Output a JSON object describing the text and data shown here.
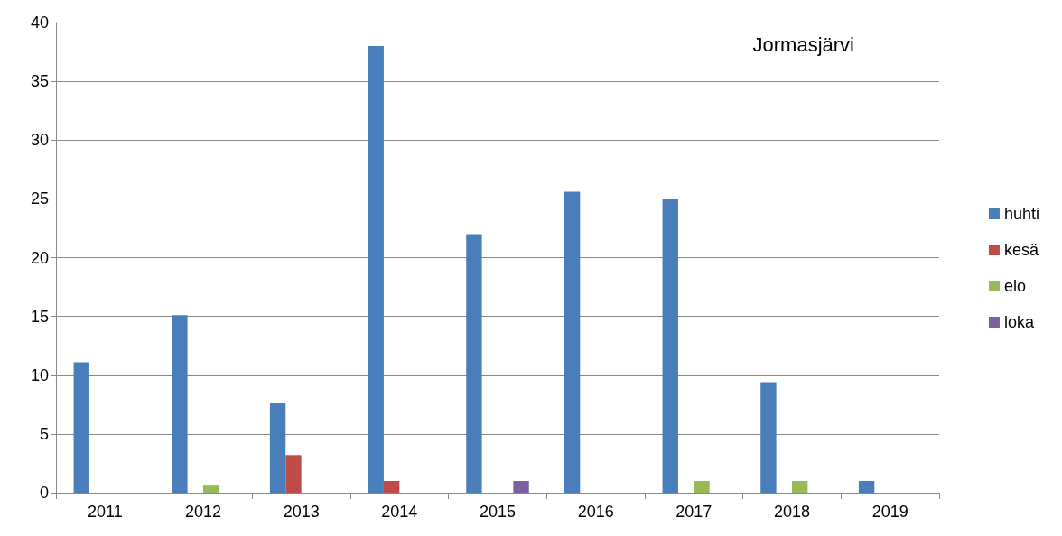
{
  "chart_data": {
    "type": "bar",
    "annotations": [
      {
        "text": "Jormasjärvi"
      }
    ],
    "categories": [
      "2011",
      "2012",
      "2013",
      "2014",
      "2015",
      "2016",
      "2017",
      "2018",
      "2019"
    ],
    "series": [
      {
        "name": "huhti",
        "color": "#4a7ebb",
        "values": [
          11.1,
          15.1,
          7.6,
          38,
          22,
          25.6,
          25,
          9.4,
          1
        ]
      },
      {
        "name": "kesä",
        "color": "#be4b48",
        "values": [
          0,
          0,
          3.2,
          1,
          null,
          null,
          null,
          null,
          null
        ]
      },
      {
        "name": "elo",
        "color": "#98b954",
        "values": [
          0,
          0.6,
          0,
          null,
          0,
          0,
          1,
          1,
          null
        ]
      },
      {
        "name": "loka",
        "color": "#7d60a0",
        "values": [
          0,
          null,
          null,
          null,
          1,
          null,
          null,
          null,
          null
        ]
      }
    ],
    "ylim": [
      0,
      40
    ],
    "yticks": [
      0,
      5,
      10,
      15,
      20,
      25,
      30,
      35,
      40
    ],
    "grid": "y",
    "legend": "right"
  }
}
